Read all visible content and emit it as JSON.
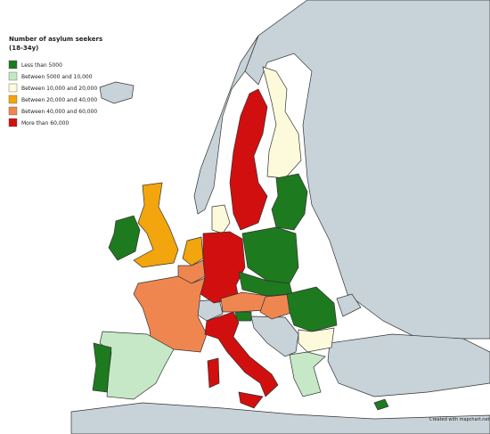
{
  "legend": {
    "title": [
      "Number of asylum seekers",
      "(18-34y)"
    ],
    "items": [
      {
        "label": "Less than 5000",
        "color": "#1e7a1e"
      },
      {
        "label": "Between 5000 and 10,000",
        "color": "#c6e8c6"
      },
      {
        "label": "Between 10,000 and 20,000",
        "color": "#fcfadb"
      },
      {
        "label": "Between 20,000 and 40,000",
        "color": "#f2a50c"
      },
      {
        "label": "Between 40,000 and 60,000",
        "color": "#f0864f"
      },
      {
        "label": "More than 60,000",
        "color": "#d10f0f"
      }
    ]
  },
  "credit": "Created with mapchart.net"
}
